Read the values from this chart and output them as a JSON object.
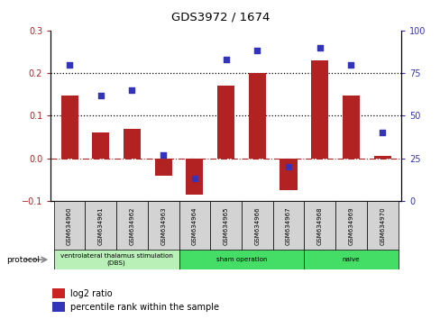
{
  "title": "GDS3972 / 1674",
  "samples": [
    "GSM634960",
    "GSM634961",
    "GSM634962",
    "GSM634963",
    "GSM634964",
    "GSM634965",
    "GSM634966",
    "GSM634967",
    "GSM634968",
    "GSM634969",
    "GSM634970"
  ],
  "log2_ratio": [
    0.148,
    0.06,
    0.07,
    -0.04,
    -0.085,
    0.17,
    0.2,
    -0.075,
    0.23,
    0.148,
    0.005
  ],
  "percentile_rank": [
    80,
    62,
    65,
    27,
    13,
    83,
    88,
    20,
    90,
    80,
    40
  ],
  "bar_color": "#b22222",
  "dot_color": "#3333bb",
  "ylim_left": [
    -0.1,
    0.3
  ],
  "ylim_right": [
    0,
    100
  ],
  "yticks_left": [
    -0.1,
    0.0,
    0.1,
    0.2,
    0.3
  ],
  "yticks_right": [
    0,
    25,
    50,
    75,
    100
  ],
  "hlines": [
    0.1,
    0.2
  ],
  "zero_line_color": "#aa2222",
  "groups": [
    {
      "label": "ventrolateral thalamus stimulation\n(DBS)",
      "start": 0,
      "end": 3,
      "color": "#b8f0b8"
    },
    {
      "label": "sham operation",
      "start": 4,
      "end": 7,
      "color": "#33cc55"
    },
    {
      "label": "naive",
      "start": 8,
      "end": 10,
      "color": "#33cc55"
    }
  ],
  "legend_bar_color": "#cc2222",
  "legend_dot_color": "#3333bb",
  "legend_bar_label": "log2 ratio",
  "legend_dot_label": "percentile rank within the sample",
  "protocol_label": "protocol"
}
